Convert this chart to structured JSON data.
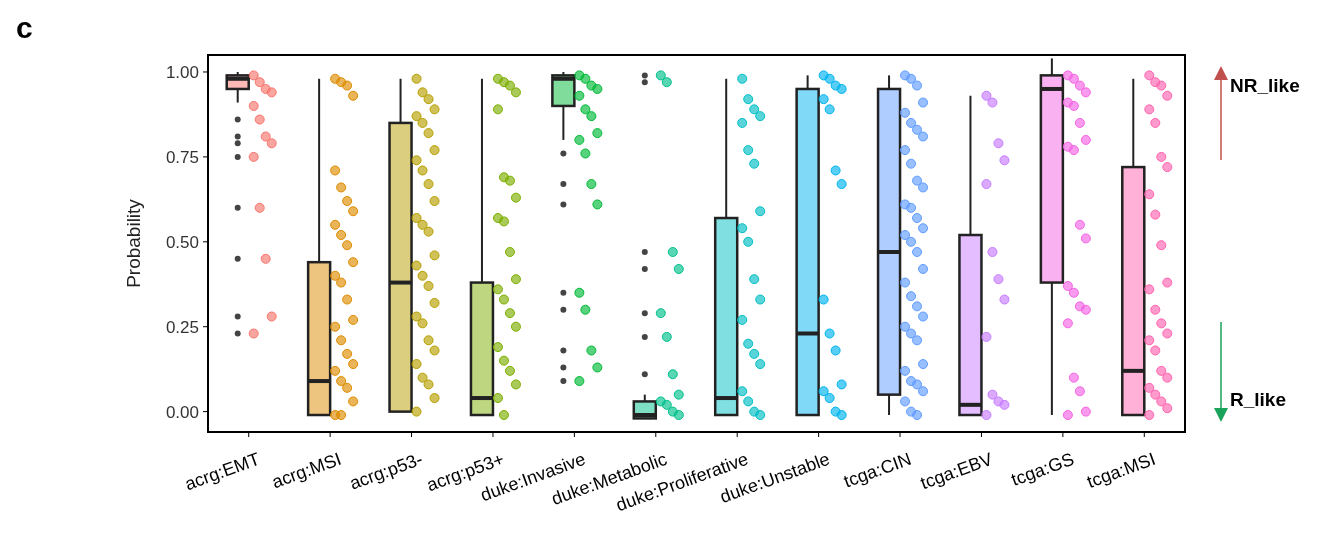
{
  "chart_data": {
    "type": "box",
    "ylabel": "Probability",
    "ylim": [
      -0.06,
      1.05
    ],
    "yticks": [
      {
        "value": 0,
        "label": "0.00"
      },
      {
        "value": 0.25,
        "label": "0.25"
      },
      {
        "value": 0.5,
        "label": "0.50"
      },
      {
        "value": 0.75,
        "label": "0.75"
      },
      {
        "value": 1,
        "label": "1.00"
      }
    ],
    "categories": [
      "acrg:EMT",
      "acrg:MSI",
      "acrg:p53-",
      "acrg:p53+",
      "duke:Invasive",
      "duke:Metabolic",
      "duke:Proliferative",
      "duke:Unstable",
      "tcga:CIN",
      "tcga:EBV",
      "tcga:GS",
      "tcga:MSI"
    ],
    "annotations": [
      "c",
      "NR_like",
      "R_like"
    ],
    "grid": false,
    "series": [
      {
        "colors": [
          "#f8766d",
          "#de8c00",
          "#b79f00",
          "#7cae00",
          "#00ba38",
          "#00c08b",
          "#00bfc4",
          "#00b4f0",
          "#619cff",
          "#c77cff",
          "#f564e3",
          "#ff64b0"
        ],
        "boxes": [
          {
            "low": 0.91,
            "q1": 0.95,
            "median": 0.98,
            "q3": 0.99,
            "high": 1.0,
            "outliers": [
              0.86,
              0.81,
              0.79,
              0.75,
              0.6,
              0.45,
              0.28,
              0.23
            ]
          },
          {
            "low": -0.01,
            "q1": -0.01,
            "median": 0.09,
            "q3": 0.44,
            "high": 0.98
          },
          {
            "low": 0.0,
            "q1": 0.0,
            "median": 0.38,
            "q3": 0.85,
            "high": 0.98
          },
          {
            "low": -0.01,
            "q1": -0.01,
            "median": 0.04,
            "q3": 0.38,
            "high": 0.98
          },
          {
            "low": 0.8,
            "q1": 0.9,
            "median": 0.98,
            "q3": 0.99,
            "high": 1.0,
            "outliers": [
              0.76,
              0.67,
              0.61,
              0.35,
              0.3,
              0.18,
              0.13,
              0.09
            ]
          },
          {
            "low": -0.02,
            "q1": -0.02,
            "median": -0.01,
            "q3": 0.03,
            "high": 0.05,
            "outliers": [
              0.99,
              0.97,
              0.47,
              0.42,
              0.29,
              0.22,
              0.11
            ]
          },
          {
            "low": -0.01,
            "q1": -0.01,
            "median": 0.04,
            "q3": 0.57,
            "high": 0.98
          },
          {
            "low": -0.01,
            "q1": -0.01,
            "median": 0.23,
            "q3": 0.95,
            "high": 0.99
          },
          {
            "low": -0.01,
            "q1": 0.05,
            "median": 0.47,
            "q3": 0.95,
            "high": 0.99
          },
          {
            "low": -0.01,
            "q1": -0.01,
            "median": 0.02,
            "q3": 0.52,
            "high": 0.93
          },
          {
            "low": -0.01,
            "q1": 0.38,
            "median": 0.95,
            "q3": 0.99,
            "high": 1.04
          },
          {
            "low": -0.01,
            "q1": -0.01,
            "median": 0.12,
            "q3": 0.72,
            "high": 0.98
          }
        ]
      },
      {
        "type": "scatter",
        "color": "#f8766d",
        "x": [
          "acrg:EMT",
          "acrg:EMT",
          "acrg:EMT",
          "acrg:EMT",
          "acrg:EMT",
          "acrg:EMT",
          "acrg:EMT",
          "acrg:EMT",
          "acrg:EMT",
          "acrg:EMT",
          "acrg:EMT",
          "acrg:EMT",
          "acrg:EMT"
        ],
        "values": [
          0.99,
          0.97,
          0.95,
          0.94,
          0.9,
          0.86,
          0.81,
          0.79,
          0.75,
          0.6,
          0.45,
          0.28,
          0.23
        ]
      },
      {
        "type": "scatter",
        "color": "#de8c00",
        "x": [
          "acrg:MSI",
          "acrg:MSI",
          "acrg:MSI",
          "acrg:MSI",
          "acrg:MSI",
          "acrg:MSI",
          "acrg:MSI",
          "acrg:MSI",
          "acrg:MSI",
          "acrg:MSI",
          "acrg:MSI",
          "acrg:MSI",
          "acrg:MSI",
          "acrg:MSI",
          "acrg:MSI",
          "acrg:MSI",
          "acrg:MSI",
          "acrg:MSI",
          "acrg:MSI",
          "acrg:MSI",
          "acrg:MSI",
          "acrg:MSI",
          "acrg:MSI",
          "acrg:MSI",
          "acrg:MSI",
          "acrg:MSI"
        ],
        "values": [
          0.98,
          0.97,
          0.96,
          0.93,
          0.71,
          0.66,
          0.62,
          0.59,
          0.55,
          0.52,
          0.49,
          0.44,
          0.4,
          0.38,
          0.33,
          0.27,
          0.25,
          0.21,
          0.17,
          0.14,
          0.12,
          0.09,
          0.07,
          0.03,
          -0.01,
          -0.01
        ]
      },
      {
        "type": "scatter",
        "color": "#b79f00",
        "x": [
          "acrg:p53-",
          "acrg:p53-",
          "acrg:p53-",
          "acrg:p53-",
          "acrg:p53-",
          "acrg:p53-",
          "acrg:p53-",
          "acrg:p53-",
          "acrg:p53-",
          "acrg:p53-",
          "acrg:p53-",
          "acrg:p53-",
          "acrg:p53-",
          "acrg:p53-",
          "acrg:p53-",
          "acrg:p53-",
          "acrg:p53-",
          "acrg:p53-",
          "acrg:p53-",
          "acrg:p53-",
          "acrg:p53-",
          "acrg:p53-",
          "acrg:p53-",
          "acrg:p53-",
          "acrg:p53-",
          "acrg:p53-",
          "acrg:p53-",
          "acrg:p53-",
          "acrg:p53-"
        ],
        "values": [
          0.98,
          0.94,
          0.92,
          0.89,
          0.87,
          0.85,
          0.82,
          0.77,
          0.74,
          0.71,
          0.67,
          0.62,
          0.57,
          0.55,
          0.53,
          0.46,
          0.43,
          0.4,
          0.37,
          0.32,
          0.28,
          0.26,
          0.21,
          0.18,
          0.14,
          0.1,
          0.08,
          0.04,
          0.0
        ]
      },
      {
        "type": "scatter",
        "color": "#7cae00",
        "x": [
          "acrg:p53+",
          "acrg:p53+",
          "acrg:p53+",
          "acrg:p53+",
          "acrg:p53+",
          "acrg:p53+",
          "acrg:p53+",
          "acrg:p53+",
          "acrg:p53+",
          "acrg:p53+",
          "acrg:p53+",
          "acrg:p53+",
          "acrg:p53+",
          "acrg:p53+",
          "acrg:p53+",
          "acrg:p53+",
          "acrg:p53+",
          "acrg:p53+",
          "acrg:p53+",
          "acrg:p53+",
          "acrg:p53+",
          "acrg:p53+"
        ],
        "values": [
          0.98,
          0.97,
          0.96,
          0.94,
          0.89,
          0.69,
          0.68,
          0.63,
          0.57,
          0.56,
          0.47,
          0.39,
          0.36,
          0.33,
          0.29,
          0.25,
          0.19,
          0.15,
          0.12,
          0.08,
          0.04,
          -0.01
        ]
      },
      {
        "type": "scatter",
        "color": "#00ba38",
        "x": [
          "duke:Invasive",
          "duke:Invasive",
          "duke:Invasive",
          "duke:Invasive",
          "duke:Invasive",
          "duke:Invasive",
          "duke:Invasive",
          "duke:Invasive",
          "duke:Invasive",
          "duke:Invasive",
          "duke:Invasive",
          "duke:Invasive",
          "duke:Invasive",
          "duke:Invasive",
          "duke:Invasive",
          "duke:Invasive",
          "duke:Invasive"
        ],
        "values": [
          0.99,
          0.98,
          0.96,
          0.95,
          0.93,
          0.89,
          0.87,
          0.82,
          0.8,
          0.76,
          0.67,
          0.61,
          0.35,
          0.3,
          0.18,
          0.13,
          0.09
        ]
      },
      {
        "type": "scatter",
        "color": "#00c08b",
        "x": [
          "duke:Metabolic",
          "duke:Metabolic",
          "duke:Metabolic",
          "duke:Metabolic",
          "duke:Metabolic",
          "duke:Metabolic",
          "duke:Metabolic",
          "duke:Metabolic",
          "duke:Metabolic",
          "duke:Metabolic",
          "duke:Metabolic",
          "duke:Metabolic"
        ],
        "values": [
          0.99,
          0.97,
          0.47,
          0.42,
          0.29,
          0.22,
          0.11,
          0.05,
          0.03,
          0.02,
          0.0,
          -0.01
        ]
      },
      {
        "type": "scatter",
        "color": "#00bfc4",
        "x": [
          "duke:Proliferative",
          "duke:Proliferative",
          "duke:Proliferative",
          "duke:Proliferative",
          "duke:Proliferative",
          "duke:Proliferative",
          "duke:Proliferative",
          "duke:Proliferative",
          "duke:Proliferative",
          "duke:Proliferative",
          "duke:Proliferative",
          "duke:Proliferative",
          "duke:Proliferative",
          "duke:Proliferative",
          "duke:Proliferative",
          "duke:Proliferative",
          "duke:Proliferative",
          "duke:Proliferative",
          "duke:Proliferative",
          "duke:Proliferative"
        ],
        "values": [
          0.98,
          0.92,
          0.89,
          0.87,
          0.85,
          0.77,
          0.73,
          0.59,
          0.54,
          0.5,
          0.39,
          0.33,
          0.27,
          0.2,
          0.17,
          0.14,
          0.06,
          0.03,
          0.0,
          -0.01
        ]
      },
      {
        "type": "scatter",
        "color": "#00b4f0",
        "x": [
          "duke:Unstable",
          "duke:Unstable",
          "duke:Unstable",
          "duke:Unstable",
          "duke:Unstable",
          "duke:Unstable",
          "duke:Unstable",
          "duke:Unstable",
          "duke:Unstable",
          "duke:Unstable",
          "duke:Unstable",
          "duke:Unstable",
          "duke:Unstable",
          "duke:Unstable",
          "duke:Unstable",
          "duke:Unstable"
        ],
        "values": [
          0.99,
          0.98,
          0.96,
          0.95,
          0.92,
          0.89,
          0.71,
          0.67,
          0.33,
          0.23,
          0.18,
          0.08,
          0.06,
          0.04,
          0.0,
          -0.01
        ]
      },
      {
        "type": "scatter",
        "color": "#619cff",
        "x": [
          "tcga:CIN",
          "tcga:CIN",
          "tcga:CIN",
          "tcga:CIN",
          "tcga:CIN",
          "tcga:CIN",
          "tcga:CIN",
          "tcga:CIN",
          "tcga:CIN",
          "tcga:CIN",
          "tcga:CIN",
          "tcga:CIN",
          "tcga:CIN",
          "tcga:CIN",
          "tcga:CIN",
          "tcga:CIN",
          "tcga:CIN",
          "tcga:CIN",
          "tcga:CIN",
          "tcga:CIN",
          "tcga:CIN",
          "tcga:CIN",
          "tcga:CIN",
          "tcga:CIN",
          "tcga:CIN",
          "tcga:CIN",
          "tcga:CIN",
          "tcga:CIN",
          "tcga:CIN",
          "tcga:CIN",
          "tcga:CIN",
          "tcga:CIN",
          "tcga:CIN",
          "tcga:CIN",
          "tcga:CIN"
        ],
        "values": [
          0.99,
          0.98,
          0.96,
          0.91,
          0.88,
          0.85,
          0.83,
          0.81,
          0.77,
          0.73,
          0.68,
          0.66,
          0.61,
          0.6,
          0.57,
          0.54,
          0.52,
          0.5,
          0.47,
          0.42,
          0.38,
          0.34,
          0.31,
          0.28,
          0.25,
          0.23,
          0.21,
          0.14,
          0.12,
          0.09,
          0.08,
          0.06,
          0.03,
          0.0,
          -0.01
        ]
      },
      {
        "type": "scatter",
        "color": "#c77cff",
        "x": [
          "tcga:EBV",
          "tcga:EBV",
          "tcga:EBV",
          "tcga:EBV",
          "tcga:EBV",
          "tcga:EBV",
          "tcga:EBV",
          "tcga:EBV",
          "tcga:EBV",
          "tcga:EBV",
          "tcga:EBV",
          "tcga:EBV",
          "tcga:EBV"
        ],
        "values": [
          0.93,
          0.91,
          0.79,
          0.74,
          0.67,
          0.47,
          0.39,
          0.33,
          0.22,
          0.05,
          0.03,
          0.02,
          -0.01
        ]
      },
      {
        "type": "scatter",
        "color": "#f564e3",
        "x": [
          "tcga:GS",
          "tcga:GS",
          "tcga:GS",
          "tcga:GS",
          "tcga:GS",
          "tcga:GS",
          "tcga:GS",
          "tcga:GS",
          "tcga:GS",
          "tcga:GS",
          "tcga:GS",
          "tcga:GS",
          "tcga:GS",
          "tcga:GS",
          "tcga:GS",
          "tcga:GS",
          "tcga:GS",
          "tcga:GS",
          "tcga:GS",
          "tcga:GS",
          "tcga:GS"
        ],
        "values": [
          0.99,
          0.98,
          0.96,
          0.94,
          0.91,
          0.9,
          0.85,
          0.8,
          0.78,
          0.77,
          0.55,
          0.51,
          0.37,
          0.35,
          0.31,
          0.3,
          0.26,
          0.1,
          0.06,
          0.0,
          -0.01
        ]
      },
      {
        "type": "scatter",
        "color": "#ff64b0",
        "x": [
          "tcga:MSI",
          "tcga:MSI",
          "tcga:MSI",
          "tcga:MSI",
          "tcga:MSI",
          "tcga:MSI",
          "tcga:MSI",
          "tcga:MSI",
          "tcga:MSI",
          "tcga:MSI",
          "tcga:MSI",
          "tcga:MSI",
          "tcga:MSI",
          "tcga:MSI",
          "tcga:MSI",
          "tcga:MSI",
          "tcga:MSI",
          "tcga:MSI",
          "tcga:MSI",
          "tcga:MSI",
          "tcga:MSI",
          "tcga:MSI",
          "tcga:MSI",
          "tcga:MSI",
          "tcga:MSI"
        ],
        "values": [
          0.99,
          0.97,
          0.96,
          0.93,
          0.89,
          0.85,
          0.75,
          0.72,
          0.64,
          0.58,
          0.49,
          0.38,
          0.36,
          0.3,
          0.26,
          0.23,
          0.21,
          0.18,
          0.12,
          0.1,
          0.07,
          0.05,
          0.03,
          0.01,
          -0.01
        ]
      }
    ]
  }
}
